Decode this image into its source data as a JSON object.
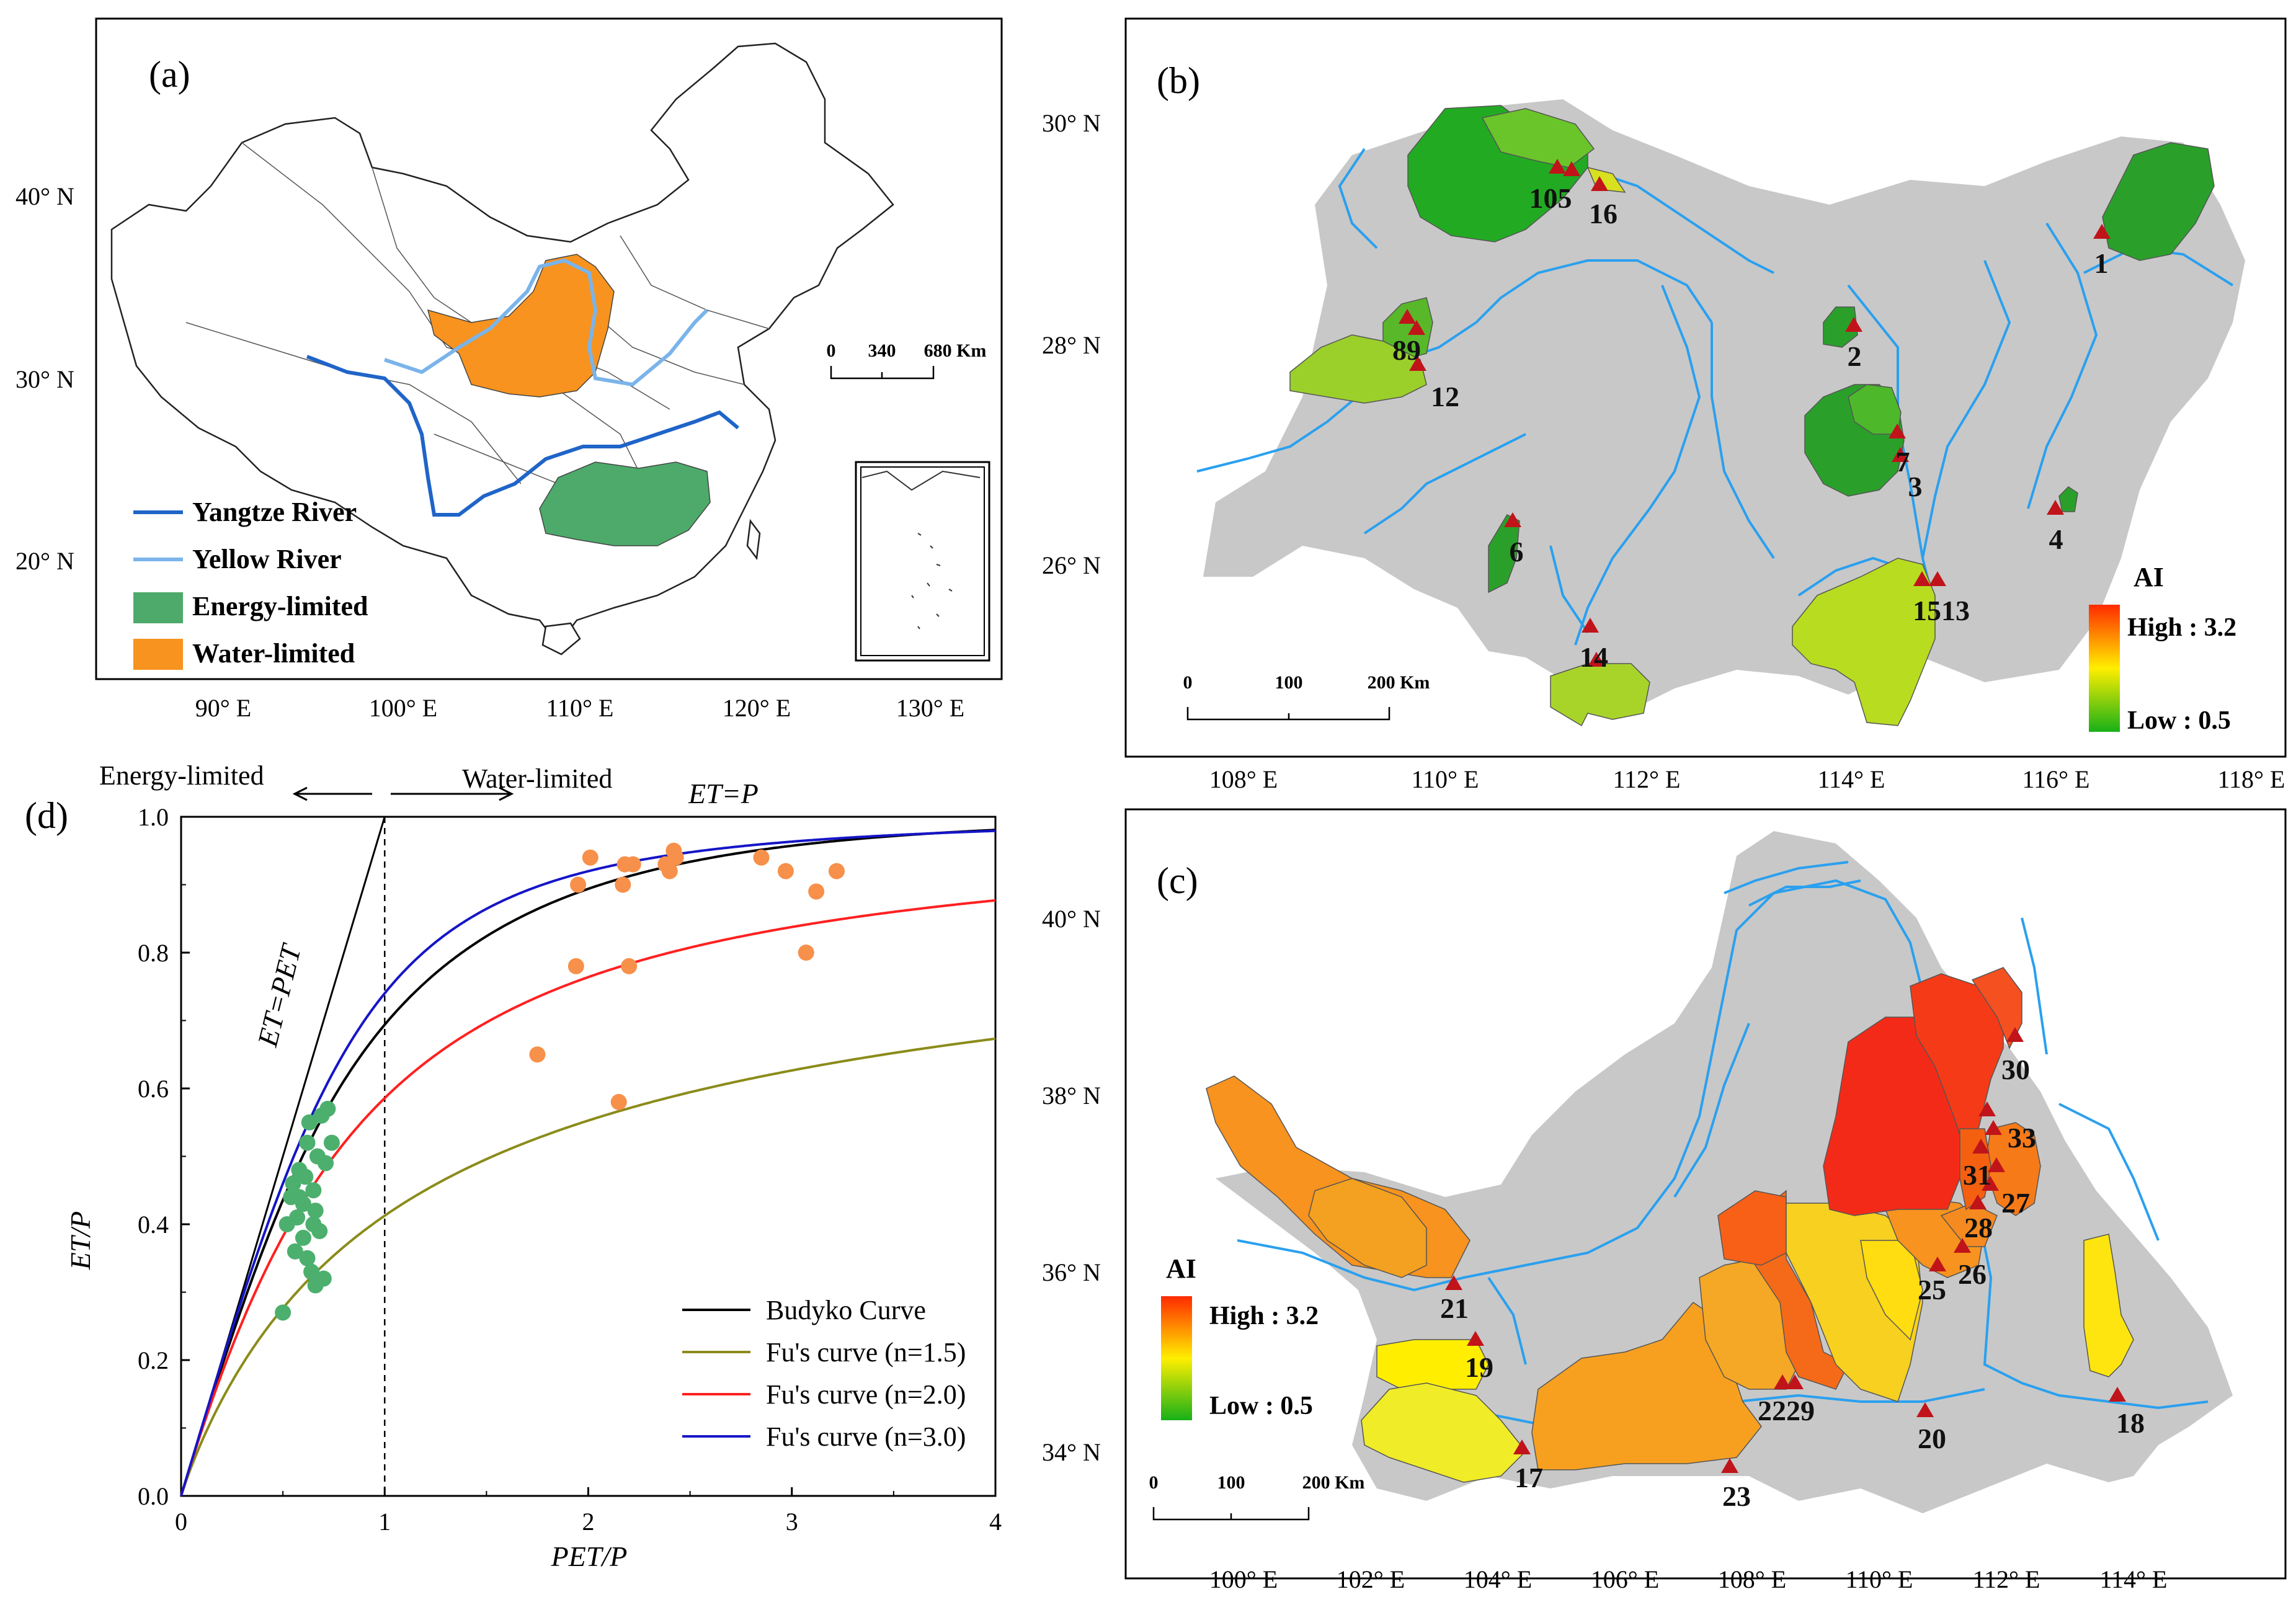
{
  "panel_a": {
    "label": "(a)",
    "lat_ticks": [
      "40° N",
      "30° N",
      "20° N"
    ],
    "lon_ticks": [
      "90° E",
      "100° E",
      "110° E",
      "120° E",
      "130° E"
    ],
    "scale": {
      "ticks": [
        "0",
        "340",
        "680 Km"
      ]
    },
    "legend": [
      {
        "label": "Yangtze River",
        "color": "#1f64c8"
      },
      {
        "label": "Yellow River",
        "color": "#7ab4ea"
      },
      {
        "label": "Energy-limited",
        "color": "#4daa6b"
      },
      {
        "label": "Water-limited",
        "color": "#f7931e"
      }
    ]
  },
  "panel_b": {
    "label": "(b)",
    "lat_ticks": [
      "30° N",
      "28° N",
      "26° N"
    ],
    "lon_ticks": [
      "108° E",
      "110° E",
      "112° E",
      "114° E",
      "116° E",
      "118° E"
    ],
    "scale": {
      "ticks": [
        "0",
        "100",
        "200 Km"
      ]
    },
    "sites": [
      "105",
      "16",
      "1",
      "89",
      "12",
      "2",
      "7",
      "3",
      "6",
      "4",
      "1513",
      "14"
    ],
    "ai_legend": {
      "title": "AI",
      "high": "High : 3.2",
      "low": "Low : 0.5"
    }
  },
  "panel_c": {
    "label": "(c)",
    "lat_ticks": [
      "40° N",
      "38° N",
      "36° N",
      "34° N"
    ],
    "lon_ticks": [
      "100° E",
      "102° E",
      "104° E",
      "106° E",
      "108° E",
      "110° E",
      "112° E",
      "114° E"
    ],
    "scale": {
      "ticks": [
        "0",
        "100",
        "200 Km"
      ]
    },
    "sites": [
      "30",
      "33",
      "31",
      "27",
      "28",
      "26",
      "25",
      "21",
      "19",
      "2229",
      "20",
      "18",
      "17",
      "23"
    ],
    "ai_legend": {
      "title": "AI",
      "high": "High : 3.2",
      "low": "Low : 0.5"
    }
  },
  "panel_d": {
    "label": "(d)",
    "annotations": {
      "energy_limited": "Energy-limited",
      "water_limited": "Water-limited",
      "et_p": "ET=P",
      "et_pet": "ET=PET"
    },
    "legend": [
      "Budyko Curve",
      "Fu's curve (n=1.5)",
      "Fu's curve (n=2.0)",
      "Fu's curve (n=3.0)"
    ],
    "colors": {
      "budyko": "#000000",
      "fu15": "#8b8b1a",
      "fu20": "#ff2020",
      "fu30": "#1515c8",
      "energy_pts": "#4caf6e",
      "water_pts": "#f7904a"
    }
  },
  "chart_data": {
    "type": "scatter",
    "title": "",
    "xlabel": "PET/P",
    "ylabel": "ET/P",
    "xlim": [
      0,
      4
    ],
    "ylim": [
      0.0,
      1.0
    ],
    "x_ticks": [
      "0",
      "1",
      "2",
      "3",
      "4"
    ],
    "y_ticks": [
      "0.0",
      "0.2",
      "0.4",
      "0.6",
      "0.8",
      "1.0"
    ],
    "curves": [
      {
        "name": "Budyko Curve",
        "kind": "budyko"
      },
      {
        "name": "Fu's curve (n=1.5)",
        "kind": "fu",
        "n": 1.5
      },
      {
        "name": "Fu's curve (n=2.0)",
        "kind": "fu",
        "n": 2.0
      },
      {
        "name": "Fu's curve (n=3.0)",
        "kind": "fu",
        "n": 3.0
      }
    ],
    "limits": [
      "ET=PET",
      "ET=P"
    ],
    "series": [
      {
        "name": "Energy-limited",
        "points": [
          [
            0.5,
            0.27
          ],
          [
            0.52,
            0.4
          ],
          [
            0.54,
            0.44
          ],
          [
            0.55,
            0.46
          ],
          [
            0.56,
            0.36
          ],
          [
            0.57,
            0.41
          ],
          [
            0.58,
            0.48
          ],
          [
            0.6,
            0.38
          ],
          [
            0.6,
            0.43
          ],
          [
            0.61,
            0.47
          ],
          [
            0.62,
            0.52
          ],
          [
            0.63,
            0.55
          ],
          [
            0.64,
            0.33
          ],
          [
            0.65,
            0.4
          ],
          [
            0.65,
            0.45
          ],
          [
            0.66,
            0.31
          ],
          [
            0.67,
            0.5
          ],
          [
            0.68,
            0.39
          ],
          [
            0.69,
            0.56
          ],
          [
            0.7,
            0.32
          ],
          [
            0.71,
            0.49
          ],
          [
            0.72,
            0.57
          ],
          [
            0.74,
            0.52
          ],
          [
            0.62,
            0.35
          ],
          [
            0.66,
            0.42
          ],
          [
            0.58,
            0.44
          ]
        ]
      },
      {
        "name": "Water-limited",
        "points": [
          [
            1.75,
            0.65
          ],
          [
            1.94,
            0.78
          ],
          [
            1.95,
            0.9
          ],
          [
            2.01,
            0.94
          ],
          [
            2.15,
            0.58
          ],
          [
            2.17,
            0.9
          ],
          [
            2.18,
            0.93
          ],
          [
            2.2,
            0.78
          ],
          [
            2.22,
            0.93
          ],
          [
            2.38,
            0.93
          ],
          [
            2.4,
            0.92
          ],
          [
            2.42,
            0.95
          ],
          [
            2.43,
            0.94
          ],
          [
            2.85,
            0.94
          ],
          [
            2.97,
            0.92
          ],
          [
            3.07,
            0.8
          ],
          [
            3.12,
            0.89
          ],
          [
            3.22,
            0.92
          ]
        ]
      }
    ]
  }
}
